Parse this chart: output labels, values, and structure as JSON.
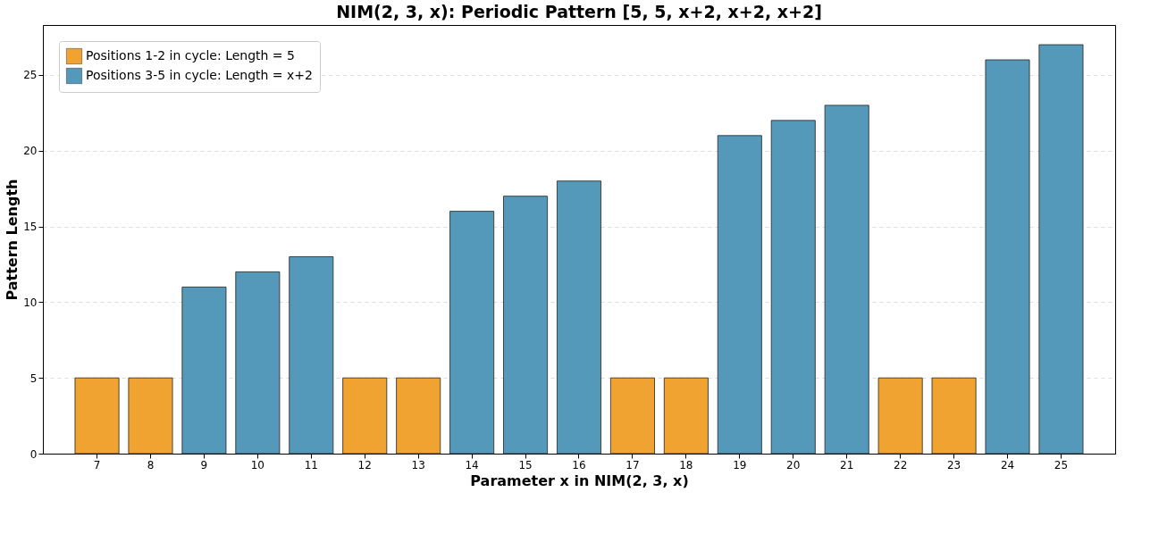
{
  "chart_data": {
    "type": "bar",
    "title": "NIM(2, 3, x): Periodic Pattern [5, 5, x+2, x+2, x+2]",
    "xlabel": "Parameter x in NIM(2, 3, x)",
    "ylabel": "Pattern Length",
    "categories": [
      "7",
      "8",
      "9",
      "10",
      "11",
      "12",
      "13",
      "14",
      "15",
      "16",
      "17",
      "18",
      "19",
      "20",
      "21",
      "22",
      "23",
      "24",
      "25"
    ],
    "series": [
      {
        "name": "Positions 1-2 in cycle: Length = 5",
        "color": "#f0a330",
        "values": [
          5,
          5,
          null,
          null,
          null,
          5,
          5,
          null,
          null,
          null,
          5,
          5,
          null,
          null,
          null,
          5,
          5,
          null,
          null
        ]
      },
      {
        "name": "Positions 3-5 in cycle: Length = x+2",
        "color": "#5499b9",
        "values": [
          null,
          null,
          11,
          12,
          13,
          null,
          null,
          16,
          17,
          18,
          null,
          null,
          21,
          22,
          23,
          null,
          null,
          26,
          27
        ]
      }
    ],
    "ylim": [
      0,
      28.3
    ],
    "yticks": [
      0,
      5,
      10,
      15,
      20,
      25
    ],
    "grid": "y",
    "legend": "top left"
  }
}
